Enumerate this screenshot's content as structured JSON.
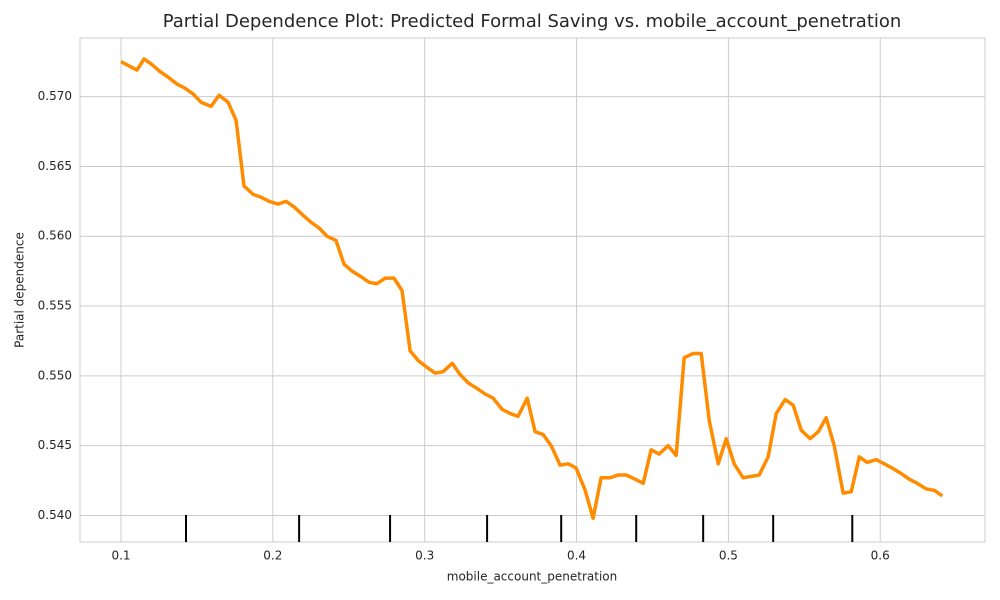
{
  "chart_data": {
    "type": "line",
    "title": "Partial Dependence Plot: Predicted Formal Saving vs. mobile_account_penetration",
    "xlabel": "mobile_account_penetration",
    "ylabel": "Partial dependence",
    "xlim": [
      0.073,
      0.669
    ],
    "ylim": [
      0.5381,
      0.5742
    ],
    "xticks": [
      0.1,
      0.2,
      0.3,
      0.4,
      0.5,
      0.6
    ],
    "yticks": [
      {
        "value": 0.54,
        "label": "0.540"
      },
      {
        "value": 0.545,
        "label": "0.545"
      },
      {
        "value": 0.55,
        "label": "0.550"
      },
      {
        "value": 0.555,
        "label": "0.555"
      },
      {
        "value": 0.56,
        "label": "0.560"
      },
      {
        "value": 0.565,
        "label": "0.565"
      },
      {
        "value": 0.57,
        "label": "0.570"
      }
    ],
    "grid": true,
    "deciles": [
      0.1428,
      0.2173,
      0.2772,
      0.3411,
      0.3899,
      0.4393,
      0.4834,
      0.5295,
      0.5816
    ],
    "series": [
      {
        "color": "#ff8c00",
        "x": [
          0.1,
          0.1105,
          0.1152,
          0.1204,
          0.1257,
          0.131,
          0.1369,
          0.1422,
          0.1474,
          0.1527,
          0.1593,
          0.1646,
          0.1705,
          0.1758,
          0.181,
          0.187,
          0.1922,
          0.1975,
          0.2034,
          0.2087,
          0.214,
          0.2199,
          0.2252,
          0.2304,
          0.2357,
          0.2416,
          0.2469,
          0.2522,
          0.2581,
          0.2634,
          0.2686,
          0.2739,
          0.2798,
          0.2851,
          0.2904,
          0.2957,
          0.3016,
          0.3069,
          0.3121,
          0.3181,
          0.3233,
          0.3286,
          0.3345,
          0.3398,
          0.3451,
          0.351,
          0.3563,
          0.3615,
          0.3675,
          0.3727,
          0.378,
          0.3833,
          0.3892,
          0.3945,
          0.3997,
          0.4057,
          0.4109,
          0.4162,
          0.4221,
          0.4274,
          0.4327,
          0.4386,
          0.4439,
          0.4491,
          0.4544,
          0.4603,
          0.4656,
          0.4709,
          0.4768,
          0.4821,
          0.4874,
          0.4933,
          0.4986,
          0.5038,
          0.5097,
          0.515,
          0.5203,
          0.5262,
          0.5315,
          0.5374,
          0.5427,
          0.548,
          0.5539,
          0.5592,
          0.5644,
          0.5697,
          0.5756,
          0.5809,
          0.5862,
          0.5914,
          0.5974,
          0.6026,
          0.6079,
          0.6138,
          0.6191,
          0.6244,
          0.6303,
          0.6356,
          0.6409
        ],
        "values": [
          0.5725,
          0.5719,
          0.5727,
          0.5723,
          0.5718,
          0.5714,
          0.5709,
          0.5706,
          0.5702,
          0.5696,
          0.5693,
          0.5701,
          0.5696,
          0.5683,
          0.5636,
          0.563,
          0.5628,
          0.5625,
          0.5623,
          0.5625,
          0.5621,
          0.5615,
          0.561,
          0.5606,
          0.56,
          0.5597,
          0.558,
          0.5575,
          0.5571,
          0.5567,
          0.5566,
          0.557,
          0.557,
          0.5561,
          0.5518,
          0.5511,
          0.5506,
          0.5502,
          0.5503,
          0.5509,
          0.5501,
          0.5495,
          0.5491,
          0.5487,
          0.5484,
          0.5476,
          0.5473,
          0.5471,
          0.5484,
          0.546,
          0.5458,
          0.545,
          0.5436,
          0.5437,
          0.5434,
          0.5418,
          0.5398,
          0.5427,
          0.5427,
          0.5429,
          0.5429,
          0.5426,
          0.5423,
          0.5447,
          0.5444,
          0.545,
          0.5443,
          0.5513,
          0.5516,
          0.5516,
          0.5468,
          0.5437,
          0.5455,
          0.5437,
          0.5427,
          0.5428,
          0.5429,
          0.5442,
          0.5473,
          0.5483,
          0.5479,
          0.5461,
          0.5455,
          0.546,
          0.547,
          0.545,
          0.5416,
          0.5417,
          0.5442,
          0.5438,
          0.544,
          0.5437,
          0.5434,
          0.543,
          0.5426,
          0.5423,
          0.5419,
          0.5418,
          0.5414
        ]
      }
    ]
  }
}
